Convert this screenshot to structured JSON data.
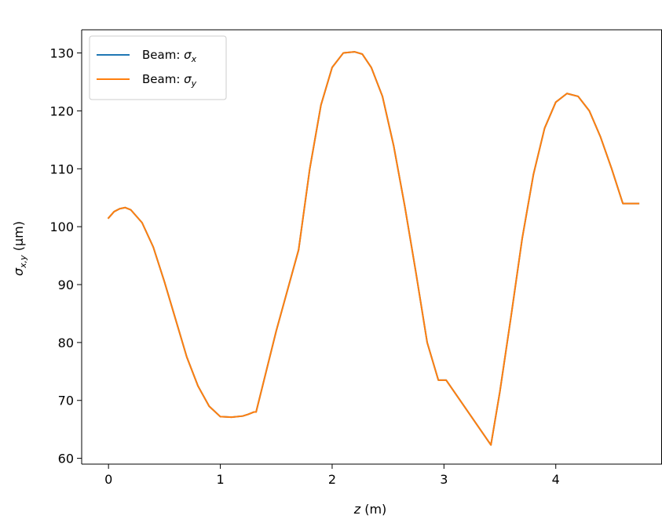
{
  "chart_data": {
    "type": "line",
    "title": "",
    "xlabel": {
      "var": "z",
      "unit": " (m)"
    },
    "ylabel": {
      "var": "σ",
      "sub": "x,y",
      "unit": " (μm)"
    },
    "xlim": [
      -0.24,
      4.95
    ],
    "ylim": [
      59,
      134
    ],
    "xticks": [
      0,
      1,
      2,
      3,
      4
    ],
    "yticks": [
      60,
      70,
      80,
      90,
      100,
      110,
      120,
      130
    ],
    "grid": false,
    "legend_position": "upper left",
    "series": [
      {
        "name": {
          "prefix": "Beam: ",
          "var": "σ",
          "sub": "x"
        },
        "color": "#1f77b4",
        "x": [
          0,
          0.05,
          0.1,
          0.15,
          0.2,
          0.3,
          0.4,
          0.5,
          0.6,
          0.7,
          0.8,
          0.9,
          1.0,
          1.1,
          1.2,
          1.25,
          1.3,
          1.32,
          1.5,
          1.7,
          1.8,
          1.9,
          2.0,
          2.1,
          2.2,
          2.27,
          2.35,
          2.45,
          2.55,
          2.65,
          2.75,
          2.85,
          2.95,
          3.02,
          3.42,
          3.5,
          3.6,
          3.7,
          3.8,
          3.9,
          4.0,
          4.1,
          4.2,
          4.3,
          4.4,
          4.5,
          4.6,
          4.7,
          4.74
        ],
        "y": [
          101.5,
          102.6,
          103.1,
          103.3,
          102.9,
          100.7,
          96.5,
          90.5,
          84.0,
          77.5,
          72.5,
          69.0,
          67.2,
          67.1,
          67.3,
          67.6,
          68.0,
          68.0,
          82.0,
          96.0,
          110.0,
          121.0,
          127.5,
          130.0,
          130.2,
          129.8,
          127.5,
          122.5,
          114.0,
          103.5,
          92.0,
          80.0,
          73.5,
          73.5,
          62.3,
          71.5,
          84.5,
          98.0,
          109.0,
          117.0,
          121.5,
          123.0,
          122.5,
          120.0,
          115.5,
          110.0,
          104.0,
          104.0,
          104.0
        ]
      },
      {
        "name": {
          "prefix": "Beam: ",
          "var": "σ",
          "sub": "y"
        },
        "color": "#ff7f0e",
        "x": [
          0,
          0.05,
          0.1,
          0.15,
          0.2,
          0.3,
          0.4,
          0.5,
          0.6,
          0.7,
          0.8,
          0.9,
          1.0,
          1.1,
          1.2,
          1.25,
          1.3,
          1.32,
          1.5,
          1.7,
          1.8,
          1.9,
          2.0,
          2.1,
          2.2,
          2.27,
          2.35,
          2.45,
          2.55,
          2.65,
          2.75,
          2.85,
          2.95,
          3.02,
          3.42,
          3.5,
          3.6,
          3.7,
          3.8,
          3.9,
          4.0,
          4.1,
          4.2,
          4.3,
          4.4,
          4.5,
          4.6,
          4.7,
          4.74
        ],
        "y": [
          101.5,
          102.6,
          103.1,
          103.3,
          102.9,
          100.7,
          96.5,
          90.5,
          84.0,
          77.5,
          72.5,
          69.0,
          67.2,
          67.1,
          67.3,
          67.6,
          68.0,
          68.0,
          82.0,
          96.0,
          110.0,
          121.0,
          127.5,
          130.0,
          130.2,
          129.8,
          127.5,
          122.5,
          114.0,
          103.5,
          92.0,
          80.0,
          73.5,
          73.5,
          62.3,
          71.5,
          84.5,
          98.0,
          109.0,
          117.0,
          121.5,
          123.0,
          122.5,
          120.0,
          115.5,
          110.0,
          104.0,
          104.0,
          104.0
        ]
      }
    ]
  }
}
